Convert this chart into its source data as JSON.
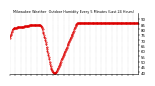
{
  "title": "Milwaukee Weather  Outdoor Humidity Every 5 Minutes (Last 24 Hours)",
  "ylim": [
    38,
    95
  ],
  "yticks": [
    40,
    45,
    50,
    55,
    60,
    65,
    70,
    75,
    80,
    85,
    90
  ],
  "ytick_labels": [
    "40",
    "45",
    "50",
    "55",
    "60",
    "65",
    "70",
    "75",
    "80",
    "85",
    "90"
  ],
  "line_color": "#dd0000",
  "bg_color": "#ffffff",
  "plot_bg": "#ffffff",
  "humidity": [
    72,
    74,
    75,
    76,
    78,
    79,
    80,
    80,
    81,
    81,
    81,
    81,
    81,
    81,
    81,
    81,
    82,
    82,
    82,
    82,
    82,
    82,
    82,
    82,
    82,
    82,
    82,
    82,
    82,
    82,
    82,
    82,
    83,
    83,
    83,
    83,
    83,
    83,
    83,
    83,
    83,
    83,
    83,
    84,
    84,
    84,
    84,
    84,
    84,
    84,
    84,
    84,
    84,
    84,
    84,
    84,
    84,
    84,
    84,
    84,
    84,
    84,
    84,
    84,
    84,
    84,
    84,
    84,
    84,
    83,
    83,
    82,
    81,
    80,
    78,
    77,
    75,
    73,
    72,
    70,
    68,
    66,
    64,
    62,
    60,
    58,
    56,
    54,
    52,
    50,
    48,
    46,
    44,
    43,
    42,
    41,
    40,
    40,
    39,
    39,
    39,
    39,
    39,
    40,
    40,
    41,
    42,
    43,
    44,
    45,
    46,
    47,
    48,
    49,
    50,
    51,
    52,
    53,
    54,
    55,
    56,
    57,
    58,
    59,
    60,
    61,
    62,
    63,
    64,
    65,
    66,
    67,
    68,
    69,
    70,
    71,
    72,
    73,
    74,
    75,
    76,
    77,
    78,
    79,
    80,
    81,
    82,
    83,
    84,
    85,
    85,
    86,
    86,
    86,
    86,
    86,
    86,
    86,
    86,
    86,
    86,
    86,
    86,
    86,
    86,
    86,
    86,
    86,
    86,
    86,
    86,
    86,
    86,
    86,
    86,
    86,
    86,
    86,
    86,
    86,
    86,
    86,
    86,
    86,
    86,
    86,
    86,
    86,
    86,
    86,
    86,
    86,
    86,
    86,
    86,
    86,
    86,
    86,
    86,
    86,
    86,
    86,
    86,
    86,
    86,
    86,
    86,
    86,
    86,
    86,
    86,
    86,
    86,
    86,
    86,
    86,
    86,
    86,
    86,
    86,
    86,
    86,
    86,
    86,
    86,
    86,
    86,
    86,
    86,
    86,
    86,
    86,
    86,
    86,
    86,
    86,
    86,
    86,
    86,
    86,
    86,
    86,
    86,
    86,
    86,
    86,
    86,
    86,
    86,
    86,
    86,
    86,
    86,
    86,
    86,
    86,
    86,
    86,
    86,
    86,
    86,
    86,
    86,
    86,
    86,
    86,
    86,
    86,
    86,
    86,
    86,
    86,
    86,
    86,
    86,
    86,
    86,
    86,
    86,
    86,
    86,
    86,
    86,
    86,
    86,
    86,
    86,
    86
  ]
}
